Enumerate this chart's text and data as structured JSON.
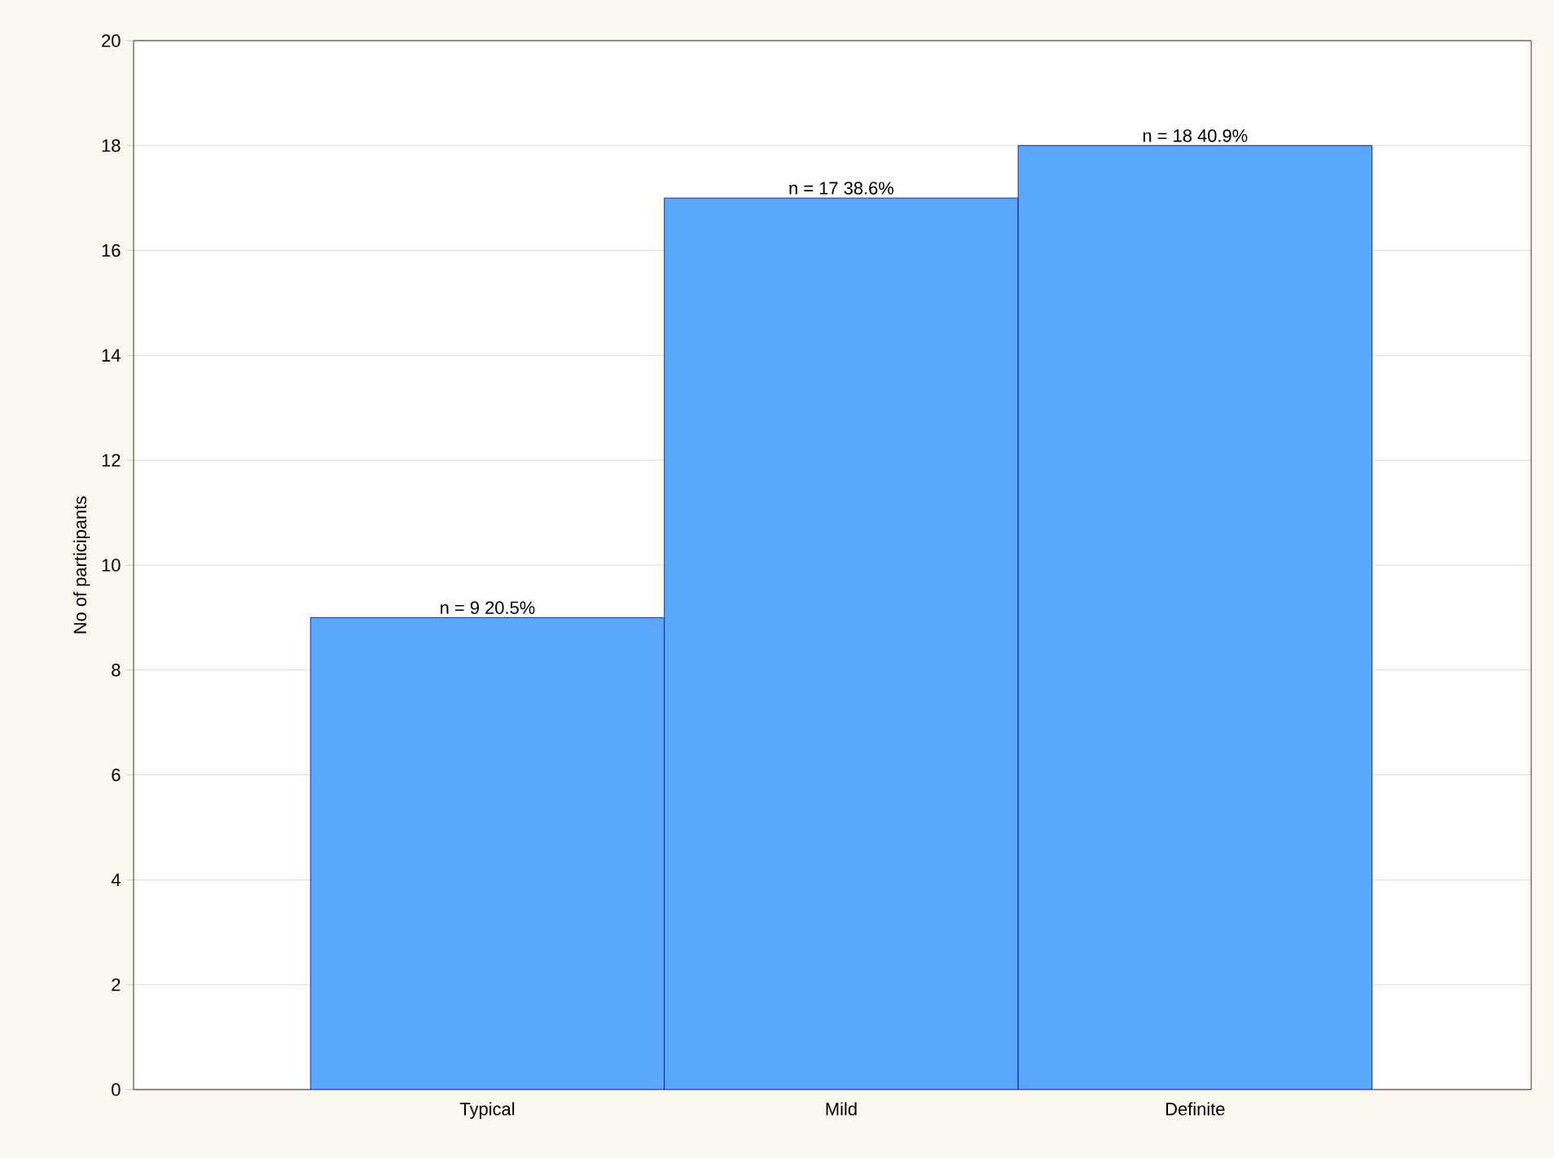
{
  "chart_data": {
    "type": "bar",
    "ylabel": "No of participants",
    "categories": [
      "Typical",
      "Mild",
      "Definite"
    ],
    "values": [
      9,
      17,
      18
    ],
    "value_labels": [
      "n = 9 20.5%",
      "n = 17 38.6%",
      "n = 18 40.9%"
    ],
    "color": "#5aa8fc",
    "ylim": [
      0,
      20
    ],
    "yticks": [
      0,
      2,
      4,
      6,
      8,
      10,
      12,
      14,
      16,
      18,
      20
    ],
    "grid": "y"
  }
}
